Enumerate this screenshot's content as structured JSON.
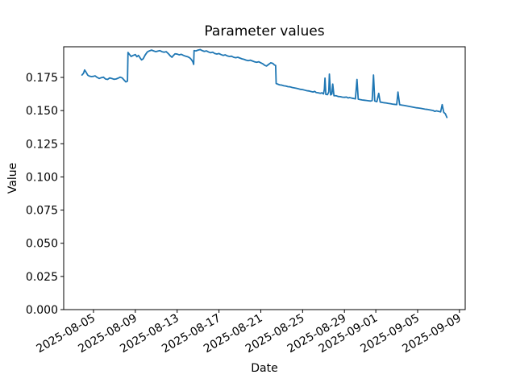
{
  "figure": {
    "background_color": "#ffffff",
    "frame_color": "#000000"
  },
  "chart_data": {
    "type": "line",
    "title": "Parameter values",
    "xlabel": "Date",
    "ylabel": "Value",
    "grid": false,
    "legend": "none",
    "line_color": "#1f77b4",
    "line_width": 1.8,
    "x_axis": {
      "x_unit": "day index where 1 = 2025-08-01, 40 = 2025-09-09",
      "tick_positions_days": [
        5,
        9,
        13,
        17,
        21,
        25,
        29,
        32,
        36,
        40
      ],
      "tick_labels": [
        "2025-08-05",
        "2025-08-09",
        "2025-08-13",
        "2025-08-17",
        "2025-08-21",
        "2025-08-25",
        "2025-08-29",
        "2025-09-01",
        "2025-09-05",
        "2025-09-09"
      ],
      "tick_rotation_deg": 30,
      "xlim_days": [
        2.15,
        40.55
      ]
    },
    "y_axis": {
      "tick_values": [
        0.0,
        0.025,
        0.05,
        0.075,
        0.1,
        0.125,
        0.15,
        0.175
      ],
      "tick_labels": [
        "0.000",
        "0.025",
        "0.050",
        "0.075",
        "0.100",
        "0.125",
        "0.150",
        "0.175"
      ],
      "ylim": [
        0,
        0.1981
      ]
    },
    "series": [
      {
        "name": "parameter-values",
        "points": [
          [
            3.9,
            0.1768
          ],
          [
            4.05,
            0.1782
          ],
          [
            4.15,
            0.1806
          ],
          [
            4.3,
            0.1788
          ],
          [
            4.45,
            0.1767
          ],
          [
            4.6,
            0.176
          ],
          [
            4.8,
            0.1756
          ],
          [
            5.0,
            0.1758
          ],
          [
            5.15,
            0.1762
          ],
          [
            5.35,
            0.175
          ],
          [
            5.55,
            0.1742
          ],
          [
            5.75,
            0.1748
          ],
          [
            5.95,
            0.1752
          ],
          [
            6.15,
            0.1738
          ],
          [
            6.35,
            0.1735
          ],
          [
            6.55,
            0.1746
          ],
          [
            6.75,
            0.1742
          ],
          [
            6.95,
            0.1736
          ],
          [
            7.15,
            0.1738
          ],
          [
            7.35,
            0.1744
          ],
          [
            7.55,
            0.1752
          ],
          [
            7.75,
            0.1746
          ],
          [
            7.95,
            0.1728
          ],
          [
            8.1,
            0.1716
          ],
          [
            8.25,
            0.1722
          ],
          [
            8.3,
            0.1938
          ],
          [
            8.45,
            0.1922
          ],
          [
            8.6,
            0.1908
          ],
          [
            8.8,
            0.1916
          ],
          [
            9.0,
            0.1922
          ],
          [
            9.15,
            0.1906
          ],
          [
            9.3,
            0.1916
          ],
          [
            9.45,
            0.1898
          ],
          [
            9.6,
            0.1882
          ],
          [
            9.75,
            0.189
          ],
          [
            9.95,
            0.192
          ],
          [
            10.15,
            0.1942
          ],
          [
            10.35,
            0.195
          ],
          [
            10.55,
            0.1956
          ],
          [
            10.75,
            0.195
          ],
          [
            10.95,
            0.1944
          ],
          [
            11.15,
            0.1948
          ],
          [
            11.35,
            0.1952
          ],
          [
            11.55,
            0.1944
          ],
          [
            11.75,
            0.194
          ],
          [
            11.95,
            0.1944
          ],
          [
            12.15,
            0.193
          ],
          [
            12.35,
            0.1912
          ],
          [
            12.5,
            0.1902
          ],
          [
            12.65,
            0.1916
          ],
          [
            12.8,
            0.1928
          ],
          [
            13.0,
            0.1926
          ],
          [
            13.2,
            0.192
          ],
          [
            13.4,
            0.1924
          ],
          [
            13.6,
            0.1916
          ],
          [
            13.8,
            0.191
          ],
          [
            14.0,
            0.1906
          ],
          [
            14.2,
            0.1898
          ],
          [
            14.35,
            0.1886
          ],
          [
            14.5,
            0.1868
          ],
          [
            14.58,
            0.1848
          ],
          [
            14.62,
            0.1952
          ],
          [
            14.8,
            0.195
          ],
          [
            15.0,
            0.1956
          ],
          [
            15.2,
            0.196
          ],
          [
            15.4,
            0.1952
          ],
          [
            15.6,
            0.1946
          ],
          [
            15.8,
            0.195
          ],
          [
            16.0,
            0.1942
          ],
          [
            16.2,
            0.1936
          ],
          [
            16.4,
            0.194
          ],
          [
            16.6,
            0.193
          ],
          [
            16.8,
            0.1926
          ],
          [
            17.0,
            0.193
          ],
          [
            17.2,
            0.1922
          ],
          [
            17.4,
            0.1916
          ],
          [
            17.6,
            0.192
          ],
          [
            17.8,
            0.1912
          ],
          [
            18.0,
            0.1908
          ],
          [
            18.2,
            0.191
          ],
          [
            18.4,
            0.1902
          ],
          [
            18.6,
            0.1898
          ],
          [
            18.8,
            0.1902
          ],
          [
            19.0,
            0.1896
          ],
          [
            19.2,
            0.189
          ],
          [
            19.4,
            0.1886
          ],
          [
            19.6,
            0.188
          ],
          [
            19.8,
            0.1876
          ],
          [
            20.0,
            0.188
          ],
          [
            20.2,
            0.1874
          ],
          [
            20.4,
            0.1868
          ],
          [
            20.6,
            0.1864
          ],
          [
            20.8,
            0.1868
          ],
          [
            21.0,
            0.186
          ],
          [
            21.2,
            0.1852
          ],
          [
            21.4,
            0.184
          ],
          [
            21.55,
            0.1836
          ],
          [
            21.75,
            0.1848
          ],
          [
            21.95,
            0.186
          ],
          [
            22.15,
            0.1856
          ],
          [
            22.3,
            0.1844
          ],
          [
            22.42,
            0.184
          ],
          [
            22.47,
            0.1704
          ],
          [
            22.6,
            0.17
          ],
          [
            22.8,
            0.1694
          ],
          [
            23.0,
            0.1692
          ],
          [
            23.2,
            0.1687
          ],
          [
            23.4,
            0.1685
          ],
          [
            23.6,
            0.168
          ],
          [
            23.8,
            0.1679
          ],
          [
            24.0,
            0.1674
          ],
          [
            24.2,
            0.1671
          ],
          [
            24.4,
            0.1668
          ],
          [
            24.6,
            0.1664
          ],
          [
            24.8,
            0.166
          ],
          [
            25.0,
            0.1658
          ],
          [
            25.2,
            0.1654
          ],
          [
            25.4,
            0.165
          ],
          [
            25.6,
            0.1648
          ],
          [
            25.8,
            0.1644
          ],
          [
            26.0,
            0.164
          ],
          [
            26.15,
            0.1645
          ],
          [
            26.3,
            0.1636
          ],
          [
            26.5,
            0.1634
          ],
          [
            26.7,
            0.163
          ],
          [
            26.85,
            0.1634
          ],
          [
            27.0,
            0.1625
          ],
          [
            27.08,
            0.166
          ],
          [
            27.14,
            0.1745
          ],
          [
            27.22,
            0.1622
          ],
          [
            27.38,
            0.162
          ],
          [
            27.5,
            0.164
          ],
          [
            27.56,
            0.1775
          ],
          [
            27.68,
            0.1618
          ],
          [
            27.8,
            0.1625
          ],
          [
            27.88,
            0.17
          ],
          [
            28.0,
            0.1612
          ],
          [
            28.2,
            0.1612
          ],
          [
            28.4,
            0.1606
          ],
          [
            28.6,
            0.1605
          ],
          [
            28.8,
            0.1601
          ],
          [
            29.0,
            0.16
          ],
          [
            29.2,
            0.1602
          ],
          [
            29.35,
            0.1595
          ],
          [
            29.5,
            0.1598
          ],
          [
            29.7,
            0.1594
          ],
          [
            29.9,
            0.1591
          ],
          [
            30.05,
            0.1588
          ],
          [
            30.2,
            0.1735
          ],
          [
            30.32,
            0.1586
          ],
          [
            30.5,
            0.1583
          ],
          [
            30.7,
            0.158
          ],
          [
            30.9,
            0.1578
          ],
          [
            31.1,
            0.1576
          ],
          [
            31.3,
            0.1574
          ],
          [
            31.5,
            0.1572
          ],
          [
            31.65,
            0.1575
          ],
          [
            31.78,
            0.1768
          ],
          [
            31.9,
            0.1572
          ],
          [
            32.1,
            0.1567
          ],
          [
            32.28,
            0.163
          ],
          [
            32.42,
            0.1564
          ],
          [
            32.6,
            0.1562
          ],
          [
            32.8,
            0.1559
          ],
          [
            33.0,
            0.1557
          ],
          [
            33.2,
            0.1554
          ],
          [
            33.4,
            0.1552
          ],
          [
            33.6,
            0.1549
          ],
          [
            33.8,
            0.1547
          ],
          [
            34.0,
            0.1545
          ],
          [
            34.12,
            0.164
          ],
          [
            34.28,
            0.1544
          ],
          [
            34.5,
            0.1541
          ],
          [
            34.7,
            0.1539
          ],
          [
            34.9,
            0.1536
          ],
          [
            35.1,
            0.1533
          ],
          [
            35.3,
            0.153
          ],
          [
            35.5,
            0.1527
          ],
          [
            35.7,
            0.1524
          ],
          [
            35.9,
            0.1521
          ],
          [
            36.1,
            0.1519
          ],
          [
            36.3,
            0.1517
          ],
          [
            36.5,
            0.1514
          ],
          [
            36.7,
            0.1511
          ],
          [
            36.9,
            0.1509
          ],
          [
            37.1,
            0.1506
          ],
          [
            37.3,
            0.1503
          ],
          [
            37.5,
            0.15
          ],
          [
            37.65,
            0.1494
          ],
          [
            37.8,
            0.1498
          ],
          [
            38.0,
            0.1494
          ],
          [
            38.2,
            0.149
          ],
          [
            38.35,
            0.1545
          ],
          [
            38.5,
            0.1486
          ],
          [
            38.65,
            0.1476
          ],
          [
            38.8,
            0.1448
          ]
        ]
      }
    ]
  }
}
